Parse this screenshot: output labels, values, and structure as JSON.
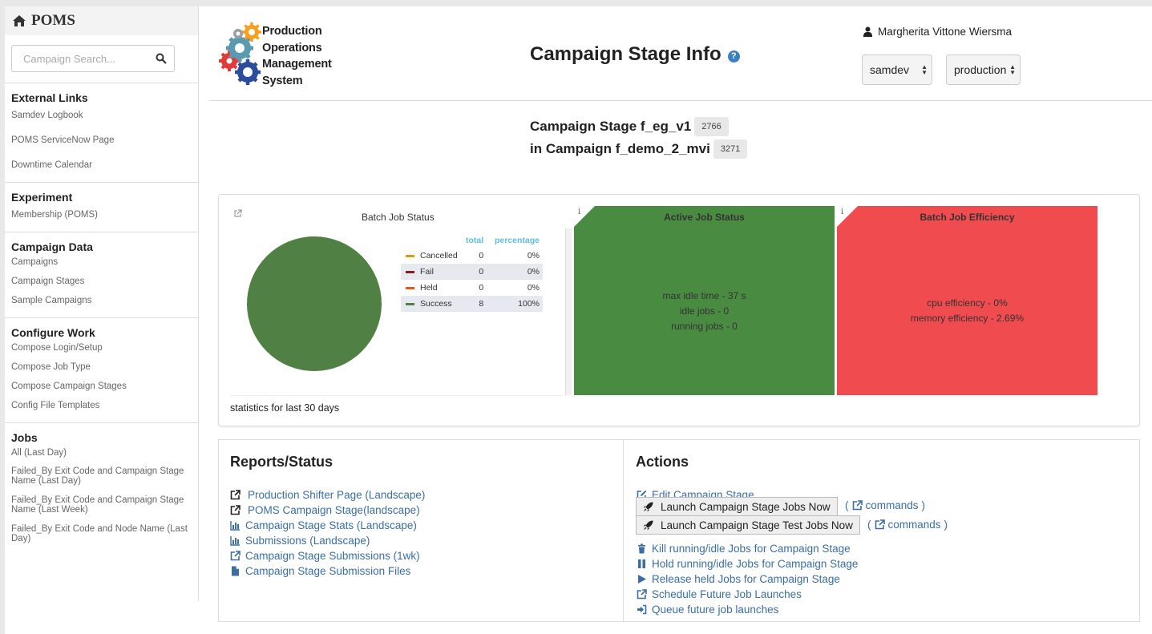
{
  "brand": {
    "title": "POMS"
  },
  "search": {
    "placeholder": "Campaign Search..."
  },
  "sidebar": {
    "external_links": {
      "heading": "External Links",
      "items": [
        "Samdev Logbook",
        "POMS ServiceNow Page",
        "Downtime Calendar"
      ]
    },
    "experiment": {
      "heading": "Experiment",
      "items": [
        "Membership (POMS)"
      ]
    },
    "campaign_data": {
      "heading": "Campaign Data",
      "items": [
        "Campaigns",
        "Campaign Stages",
        "Sample Campaigns"
      ]
    },
    "configure_work": {
      "heading": "Configure Work",
      "items": [
        "Compose Login/Setup",
        "Compose Job Type",
        "Compose Campaign Stages",
        "Config File Templates"
      ]
    },
    "jobs": {
      "heading": "Jobs",
      "items": [
        "All (Last Day)",
        "Failed_By Exit Code and Campaign Stage Name (Last Day)",
        "Failed_By Exit Code and Campaign Stage Name (Last Week)",
        "Failed_By Exit Code and Node Name (Last Day)"
      ]
    }
  },
  "logo": {
    "line1": "Production",
    "line2": "Operations",
    "line3": "Management",
    "line4": "System"
  },
  "header": {
    "title": "Campaign Stage Info",
    "user": "Margherita Vittone Wiersma",
    "experiment_select": "samdev",
    "role_select": "production"
  },
  "campaign": {
    "stage_label": "Campaign Stage f_eg_v1",
    "stage_id": "2766",
    "campaign_label": "in Campaign f_demo_2_mvi",
    "campaign_id": "3271"
  },
  "batch_status": {
    "title": "Batch Job Status",
    "col_total": "total",
    "col_percentage": "percentage",
    "rows": [
      {
        "label": "Cancelled",
        "total": "0",
        "percentage": "0%",
        "color": "#d4a017"
      },
      {
        "label": "Fail",
        "total": "0",
        "percentage": "0%",
        "color": "#8b1a1a"
      },
      {
        "label": "Held",
        "total": "0",
        "percentage": "0%",
        "color": "#e05a1a"
      },
      {
        "label": "Success",
        "total": "8",
        "percentage": "100%",
        "color": "#518044"
      }
    ],
    "footer": "statistics for last 30 days"
  },
  "active_job_status": {
    "title": "Active Job Status",
    "lines": [
      "max idle time - 37 s",
      "idle jobs - 0",
      "running jobs - 0"
    ],
    "color": "#4a8b42"
  },
  "batch_efficiency": {
    "title": "Batch Job Efficiency",
    "lines": [
      "cpu efficiency - 0%",
      "memory efficiency - 2.69%"
    ],
    "color": "#f04b4f"
  },
  "reports": {
    "heading": "Reports/Status",
    "items": [
      "Production Shifter Page (Landscape)",
      "POMS Campaign Stage(landscape)",
      "Campaign Stage Stats (Landscape)",
      "Submissions (Landscape)",
      "Campaign Stage Submissions (1wk)",
      "Campaign Stage Submission Files"
    ]
  },
  "actions": {
    "heading": "Actions",
    "edit": "Edit Campaign Stage",
    "launch": "Launch Campaign Stage Jobs Now",
    "launch_test": "Launch Campaign Stage Test Jobs Now",
    "commands": "commands",
    "kill": "Kill running/idle Jobs for Campaign Stage",
    "hold": "Hold running/idle Jobs for Campaign Stage",
    "release": "Release held Jobs for Campaign Stage",
    "schedule": "Schedule Future Job Launches",
    "queue": "Queue future job launches"
  }
}
